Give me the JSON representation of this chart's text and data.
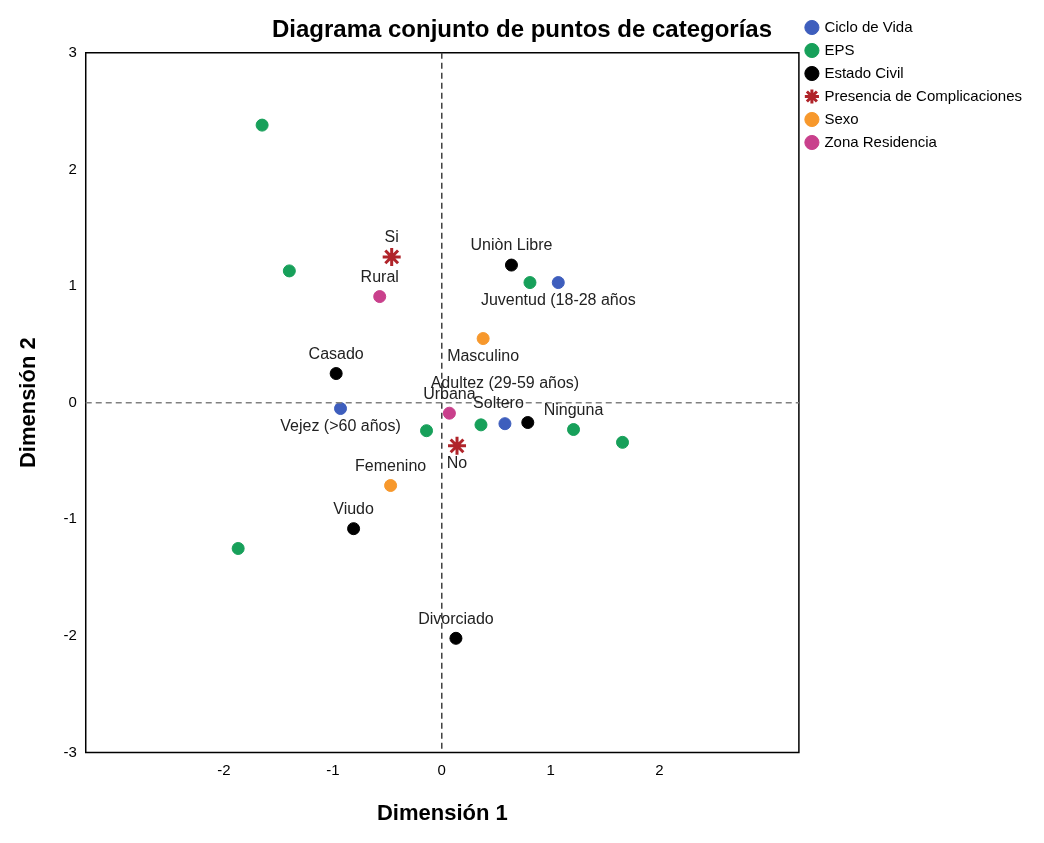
{
  "chart_data": {
    "type": "scatter",
    "title": "Diagrama conjunto de puntos de categorías",
    "xlabel": "Dimensión 1",
    "ylabel": "Dimensión 2",
    "xlim": [
      -3.27,
      3.28
    ],
    "ylim": [
      -3,
      3
    ],
    "xticks": [
      -2,
      -1,
      0,
      1,
      2
    ],
    "yticks": [
      -3,
      -2,
      -1,
      0,
      1,
      2,
      3
    ],
    "grid": false,
    "legend": "top right",
    "ref_lines": [
      {
        "axis": "x",
        "value": 0,
        "line_style": "dashed",
        "color": "#404040"
      },
      {
        "axis": "y",
        "value": 0,
        "line_style": "dashed",
        "color": "#808080"
      }
    ],
    "series": [
      {
        "name": "Ciclo de Vida",
        "color": "#3e5ebd",
        "marker": "circle",
        "x": [
          1.07,
          -0.93,
          0.58
        ],
        "values": [
          1.03,
          -0.05,
          -0.18
        ],
        "value_labels": [
          "Juventud (18-28 años",
          "Vejez (>60 años)",
          "Adultez (29-59 años)"
        ]
      },
      {
        "name": "EPS",
        "color": "#17a05a",
        "marker": "circle",
        "x": [
          -1.65,
          -1.4,
          0.81,
          -0.14,
          0.36,
          1.21,
          1.66,
          -1.87
        ],
        "values": [
          2.38,
          1.13,
          1.03,
          -0.24,
          -0.19,
          -0.23,
          -0.34,
          -1.25
        ],
        "value_labels": [
          null,
          null,
          null,
          null,
          null,
          "Ninguna",
          null,
          null
        ]
      },
      {
        "name": "Estado Civil",
        "color": "#000000",
        "marker": "circle",
        "x": [
          0.64,
          -0.97,
          0.79,
          -0.81,
          0.13
        ],
        "values": [
          1.18,
          0.25,
          -0.17,
          -1.08,
          -2.02
        ],
        "value_labels": [
          "Uniòn Libre",
          "Casado",
          "Soltero",
          "Viudo",
          "Divorciado"
        ]
      },
      {
        "name": "Presencia de Complicaciones",
        "color": "#b0242a",
        "marker": "cross",
        "x": [
          -0.46,
          0.14
        ],
        "values": [
          1.25,
          -0.37
        ],
        "value_labels": [
          "Si",
          "No"
        ]
      },
      {
        "name": "Sexo",
        "color": "#f7982c",
        "marker": "circle",
        "x": [
          0.38,
          -0.47
        ],
        "values": [
          0.55,
          -0.71
        ],
        "value_labels": [
          "Masculino",
          "Femenino"
        ]
      },
      {
        "name": "Zona Residencia",
        "color": "#c9408c",
        "marker": "circle",
        "x": [
          -0.57,
          0.07
        ],
        "values": [
          0.91,
          -0.09
        ],
        "value_labels": [
          "Rural",
          "Urbana"
        ]
      }
    ]
  }
}
